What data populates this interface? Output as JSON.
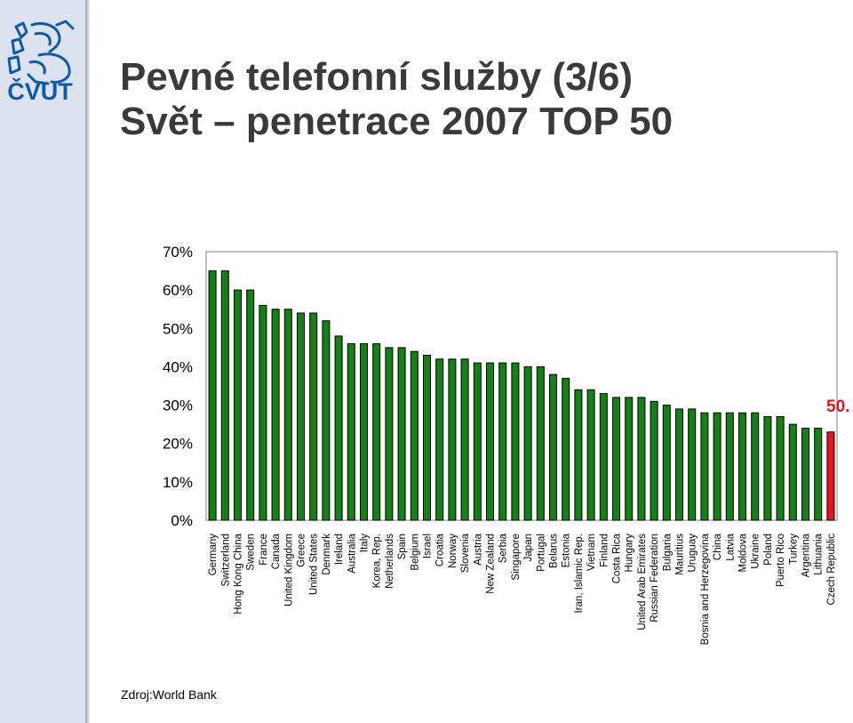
{
  "header": {
    "title_line1": "Pevné telefonní služby (3/6)",
    "title_line2": "Svět – penetrace 2007 TOP 50",
    "logo_text": "ČVUT"
  },
  "footer": {
    "source": "Zdroj:World Bank"
  },
  "colors": {
    "bar": "#158015",
    "highlight_bar": "#e8141a",
    "highlight_label": "#e8141a",
    "title": "#3a3a3a",
    "logo": "#0e5aa8"
  },
  "chart_data": {
    "type": "bar",
    "title": "",
    "xlabel": "",
    "ylabel": "",
    "ylim": [
      0,
      70
    ],
    "yticks": [
      "0%",
      "10%",
      "20%",
      "30%",
      "40%",
      "50%",
      "60%",
      "70%"
    ],
    "categories": [
      "Germany",
      "Switzerland",
      "Hong Kong China",
      "Sweden",
      "France",
      "Canada",
      "United Kingdom",
      "Greece",
      "United States",
      "Denmark",
      "Ireland",
      "Australia",
      "Italy",
      "Korea, Rep.",
      "Netherlands",
      "Spain",
      "Belgium",
      "Israel",
      "Croatia",
      "Norway",
      "Slovenia",
      "Austria",
      "New Zealand",
      "Serbia",
      "Singapore",
      "Japan",
      "Portugal",
      "Belarus",
      "Estonia",
      "Iran, Islamic Rep.",
      "Vietnam",
      "Finland",
      "Costa Rica",
      "Hungary",
      "United Arab Emirates",
      "Russian Federation",
      "Bulgaria",
      "Mauritius",
      "Uruguay",
      "Bosnia and Herzegovina",
      "China",
      "Latvia",
      "Moldova",
      "Ukraine",
      "Poland",
      "Puerto Rico",
      "Turkey",
      "Argentina",
      "Lithuania",
      "Czech Republic"
    ],
    "values": [
      65,
      65,
      60,
      60,
      56,
      55,
      55,
      54,
      54,
      52,
      48,
      46,
      46,
      46,
      45,
      45,
      44,
      43,
      42,
      42,
      42,
      41,
      41,
      41,
      41,
      40,
      40,
      38,
      37,
      34,
      34,
      33,
      32,
      32,
      32,
      31,
      30,
      29,
      29,
      28,
      28,
      28,
      28,
      28,
      27,
      27,
      25,
      24,
      24,
      23
    ],
    "highlight_index": 49,
    "annotation": "50.",
    "grid": false,
    "legend": "none"
  }
}
